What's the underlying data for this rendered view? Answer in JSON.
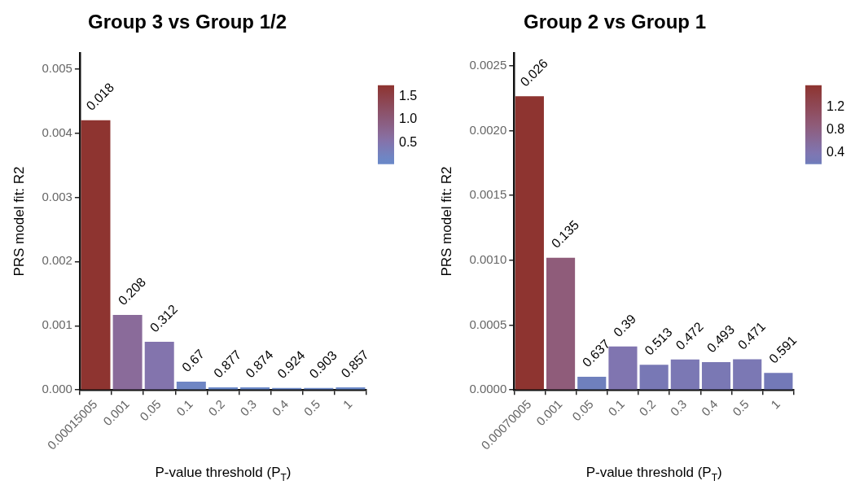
{
  "chart_data": [
    {
      "type": "bar",
      "title": "Group 3 vs Group 1/2",
      "xlabel": "P-value threshold (P$_{T}$)",
      "ylabel": "PRS model fit: R2",
      "categories": [
        "0.00015005",
        "0.001",
        "0.05",
        "0.1",
        "0.2",
        "0.3",
        "0.4",
        "0.5",
        "1"
      ],
      "values": [
        0.0042,
        0.00117,
        0.00075,
        0.00013,
        4e-05,
        4e-05,
        3e-05,
        3e-05,
        4e-05
      ],
      "annotations": [
        {
          "text": "0.018",
          "x": "0.00015005",
          "y": 0.0042
        },
        {
          "text": "0.208",
          "x": "0.001",
          "y": 0.00117
        },
        {
          "text": "0.312",
          "x": "0.05",
          "y": 0.00075
        },
        {
          "text": "0.67",
          "x": "0.1",
          "y": 0.00013
        },
        {
          "text": "0.877",
          "x": "0.2",
          "y": 4e-05
        },
        {
          "text": "0.874",
          "x": "0.3",
          "y": 4e-05
        },
        {
          "text": "0.924",
          "x": "0.4",
          "y": 3e-05
        },
        {
          "text": "0.903",
          "x": "0.5",
          "y": 3e-05
        },
        {
          "text": "0.857",
          "x": "1",
          "y": 4e-05
        }
      ],
      "colors": [
        "#8e3430",
        "#8a6b9a",
        "#8374ad",
        "#6f86c4",
        "#6a88c8",
        "#6a88c8",
        "#6a88c8",
        "#6a88c8",
        "#6a88c8"
      ],
      "cvalues": [
        1.745,
        0.682,
        0.506,
        0.174,
        0.057,
        0.058,
        0.034,
        0.044,
        0.067
      ],
      "clim": [
        0.034,
        1.745
      ],
      "cticks": [
        {
          "value": 0.5,
          "label": "0.5"
        },
        {
          "value": 1,
          "label": "1.0"
        },
        {
          "value": 1.5,
          "label": "1.5"
        }
      ],
      "ylim": [
        0,
        0.00525
      ],
      "yticks": [
        {
          "value": 0,
          "label": "0.000"
        },
        {
          "value": 0.001,
          "label": "0.001"
        },
        {
          "value": 0.002,
          "label": "0.002"
        },
        {
          "value": 0.003,
          "label": "0.003"
        },
        {
          "value": 0.004,
          "label": "0.004"
        },
        {
          "value": 0.005,
          "label": "0.005"
        }
      ],
      "grid": false,
      "legend": false
    },
    {
      "type": "bar",
      "title": "Group 2 vs Group 1",
      "xlabel": "P-value threshold (P$_{T}$)",
      "ylabel": "PRS model fit: R2",
      "categories": [
        "0.00070005",
        "0.001",
        "0.05",
        "0.1",
        "0.2",
        "0.3",
        "0.4",
        "0.5",
        "1"
      ],
      "values": [
        0.002265,
        0.00102,
        0.000102,
        0.000335,
        0.000194,
        0.000235,
        0.000214,
        0.000237,
        0.000131
      ],
      "annotations": [
        {
          "text": "0.026",
          "x": "0.00070005",
          "y": 0.002265
        },
        {
          "text": "0.135",
          "x": "0.001",
          "y": 0.00102
        },
        {
          "text": "0.637",
          "x": "0.05",
          "y": 0.000102
        },
        {
          "text": "0.39",
          "x": "0.1",
          "y": 0.000335
        },
        {
          "text": "0.513",
          "x": "0.2",
          "y": 0.000194
        },
        {
          "text": "0.472",
          "x": "0.3",
          "y": 0.000235
        },
        {
          "text": "0.493",
          "x": "0.4",
          "y": 0.000214
        },
        {
          "text": "0.471",
          "x": "0.5",
          "y": 0.000237
        },
        {
          "text": "0.591",
          "x": "1",
          "y": 0.000131
        }
      ],
      "colors": [
        "#8e3430",
        "#8f5c7a",
        "#6f80bd",
        "#8075b0",
        "#7878b5",
        "#7b78b4",
        "#7a78b4",
        "#7b78b4",
        "#7379b8"
      ],
      "cvalues": [
        1.585,
        0.87,
        0.196,
        0.409,
        0.29,
        0.326,
        0.307,
        0.327,
        0.228
      ],
      "clim": [
        0.196,
        1.585
      ],
      "cticks": [
        {
          "value": 0.4,
          "label": "0.4"
        },
        {
          "value": 0.8,
          "label": "0.8"
        },
        {
          "value": 1.2,
          "label": "1.2"
        }
      ],
      "ylim": [
        0,
        0.0026
      ],
      "yticks": [
        {
          "value": 0,
          "label": "0.0000"
        },
        {
          "value": 0.0005,
          "label": "0.0005"
        },
        {
          "value": 0.001,
          "label": "0.0010"
        },
        {
          "value": 0.0015,
          "label": "0.0015"
        },
        {
          "value": 0.002,
          "label": "0.0020"
        },
        {
          "value": 0.0025,
          "label": "0.0025"
        }
      ],
      "grid": false,
      "legend": false
    }
  ]
}
